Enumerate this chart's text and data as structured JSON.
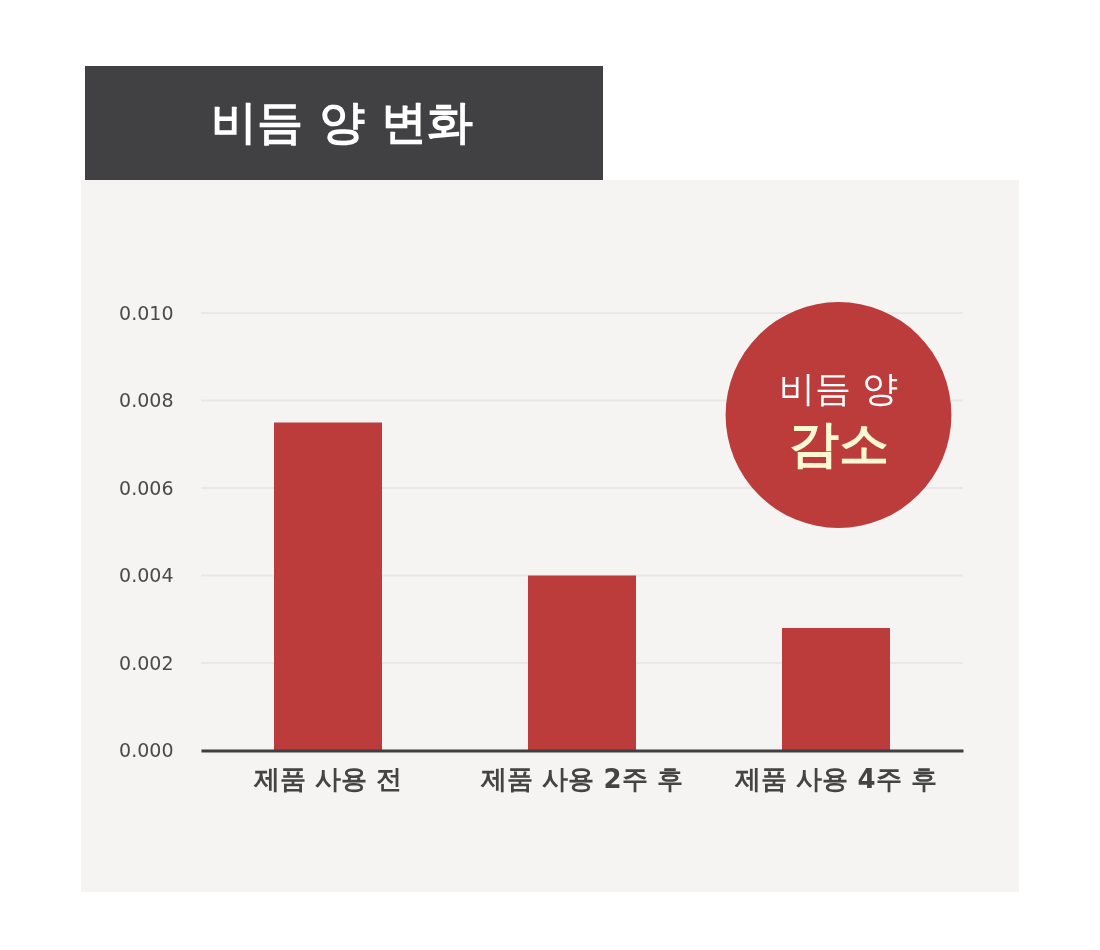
{
  "chart_data": {
    "type": "bar",
    "title": "비듬 양 변화",
    "categories": [
      "제품 사용 전",
      "제품 사용 2주 후",
      "제품 사용 4주 후"
    ],
    "values": [
      0.0075,
      0.004,
      0.0028
    ],
    "color": "#bc3c3c",
    "ylim": [
      0,
      0.01
    ],
    "yticks": [
      {
        "value": 0,
        "label": "0.000"
      },
      0.002,
      0.004,
      0.006,
      0.008,
      {
        "value": 0.01,
        "label": "0.010"
      }
    ],
    "grid": "y",
    "annotations": [
      "비듬 양",
      "감소"
    ]
  }
}
